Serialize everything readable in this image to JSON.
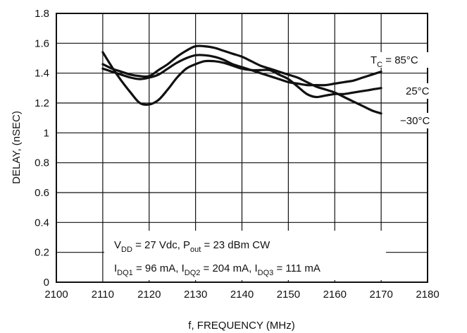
{
  "chart_data": {
    "type": "line",
    "xlabel": "f, FREQUENCY (MHz)",
    "ylabel": "DELAY, (nSEC)",
    "xlim": [
      2100,
      2180
    ],
    "ylim": [
      0,
      1.8
    ],
    "xticks": [
      "2100",
      "2110",
      "2120",
      "2130",
      "2140",
      "2150",
      "2160",
      "2170",
      "2180"
    ],
    "yticks": [
      "0",
      "0.2",
      "0.4",
      "0.6",
      "0.8",
      "1",
      "1.2",
      "1.4",
      "1.6",
      "1.8"
    ],
    "grid": true,
    "series": [
      {
        "name": "T_C = 85°C",
        "label_prefix": "T",
        "label_sub": "C",
        "label_suffix": " = 85°C",
        "x": [
          2110,
          2112,
          2114,
          2116,
          2118,
          2120,
          2122,
          2124,
          2126,
          2128,
          2130,
          2132,
          2134,
          2136,
          2138,
          2140,
          2142,
          2144,
          2146,
          2148,
          2150,
          2152,
          2154,
          2156,
          2158,
          2160,
          2162,
          2164,
          2166,
          2168,
          2170
        ],
        "y": [
          1.43,
          1.41,
          1.39,
          1.37,
          1.36,
          1.37,
          1.39,
          1.43,
          1.47,
          1.5,
          1.52,
          1.52,
          1.51,
          1.49,
          1.46,
          1.44,
          1.42,
          1.4,
          1.38,
          1.36,
          1.34,
          1.33,
          1.32,
          1.32,
          1.32,
          1.33,
          1.34,
          1.35,
          1.37,
          1.39,
          1.41
        ]
      },
      {
        "name": "25°C",
        "label_prefix": "25°C",
        "label_sub": "",
        "label_suffix": "",
        "x": [
          2110,
          2112,
          2114,
          2116,
          2118,
          2120,
          2122,
          2124,
          2126,
          2128,
          2130,
          2132,
          2134,
          2136,
          2138,
          2140,
          2142,
          2144,
          2146,
          2148,
          2150,
          2152,
          2154,
          2156,
          2158,
          2160,
          2162,
          2164,
          2166,
          2168,
          2170
        ],
        "y": [
          1.54,
          1.44,
          1.35,
          1.27,
          1.2,
          1.19,
          1.22,
          1.29,
          1.37,
          1.43,
          1.46,
          1.48,
          1.48,
          1.47,
          1.45,
          1.43,
          1.42,
          1.42,
          1.42,
          1.39,
          1.36,
          1.31,
          1.26,
          1.24,
          1.25,
          1.26,
          1.26,
          1.27,
          1.28,
          1.29,
          1.3
        ]
      },
      {
        "name": "−30°C",
        "label_prefix": "−30°C",
        "label_sub": "",
        "label_suffix": "",
        "x": [
          2110,
          2112,
          2114,
          2116,
          2118,
          2120,
          2122,
          2124,
          2126,
          2128,
          2130,
          2132,
          2134,
          2136,
          2138,
          2140,
          2142,
          2144,
          2146,
          2148,
          2150,
          2152,
          2154,
          2156,
          2158,
          2160,
          2162,
          2164,
          2166,
          2168,
          2170
        ],
        "y": [
          1.46,
          1.43,
          1.41,
          1.39,
          1.38,
          1.38,
          1.42,
          1.46,
          1.51,
          1.55,
          1.58,
          1.58,
          1.57,
          1.55,
          1.53,
          1.51,
          1.48,
          1.45,
          1.43,
          1.41,
          1.39,
          1.37,
          1.34,
          1.31,
          1.29,
          1.27,
          1.24,
          1.21,
          1.18,
          1.15,
          1.13
        ]
      }
    ],
    "annotations": [
      {
        "parts": [
          {
            "t": "V",
            "sub": false
          },
          {
            "t": "DD",
            "sub": true
          },
          {
            "t": " = 27 Vdc, P",
            "sub": false
          },
          {
            "t": "out",
            "sub": true
          },
          {
            "t": " = 23 dBm CW",
            "sub": false
          }
        ]
      },
      {
        "parts": [
          {
            "t": "I",
            "sub": false
          },
          {
            "t": "DQ1",
            "sub": true
          },
          {
            "t": " = 96 mA, I",
            "sub": false
          },
          {
            "t": "DQ2",
            "sub": true
          },
          {
            "t": " = 204 mA, I",
            "sub": false
          },
          {
            "t": "DQ3",
            "sub": true
          },
          {
            "t": " = 111 mA",
            "sub": false
          }
        ]
      }
    ],
    "colors": {
      "line": "#111111",
      "grid": "#111111",
      "background": "#ffffff"
    }
  }
}
